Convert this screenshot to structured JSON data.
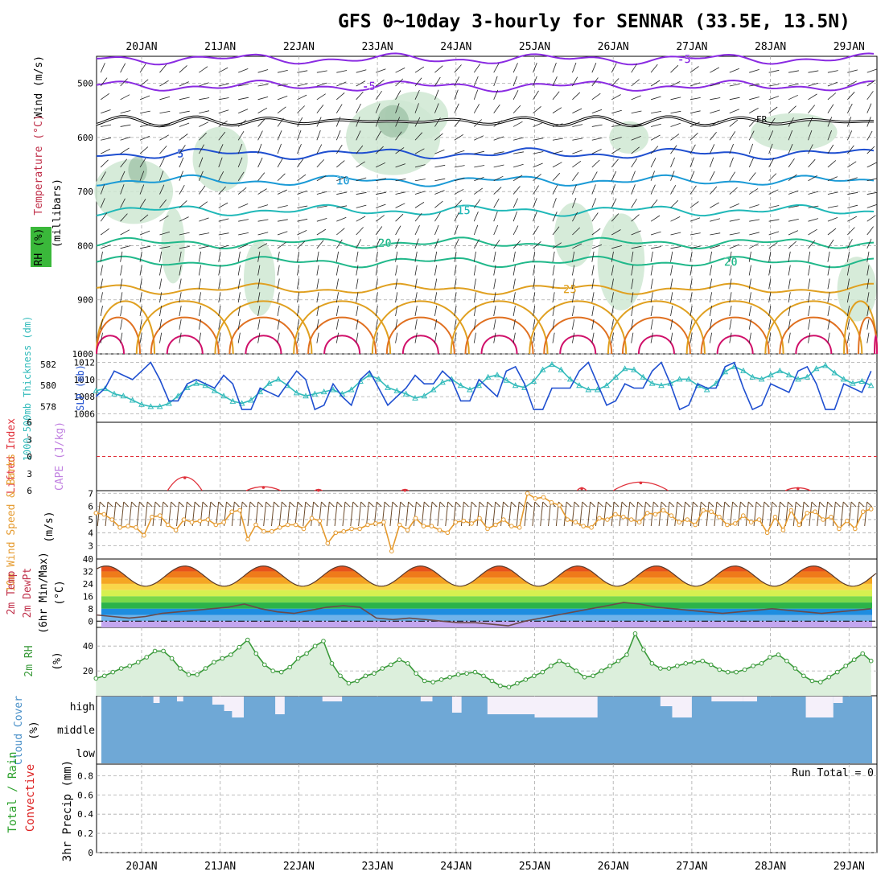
{
  "chart_data": {
    "type": "line",
    "title": "GFS 0~10day 3-hourly for SENNAR (33.5E, 13.5N)",
    "x_days": [
      "20JAN",
      "21JAN",
      "22JAN",
      "23JAN",
      "24JAN",
      "25JAN",
      "26JAN",
      "27JAN",
      "28JAN",
      "29JAN"
    ],
    "colors": {
      "grid": "#aaaaaa",
      "frame": "#000000",
      "rh_fill": "#cfe8d2",
      "rh_fill_dark": "#8fb89a",
      "slp": "#1f4fd0",
      "thickness": "#33bbbb",
      "li": "#e0303a",
      "cape": "#c080e0",
      "wind": "#e59a2e",
      "barb": "#6b4a2a",
      "temp": "#5a3a2a",
      "rh2m": "#3a9a3a",
      "cloud": "#6fa8d6",
      "cloud_gap": "#f5f0fa",
      "precip_total": "#2aa02a",
      "precip_conv": "#dd2222"
    },
    "panel_upper": {
      "ylabel_wind": "Wind (m/s)",
      "ylabel_temp": "Temperature (°C)",
      "ylabel_rh": "RH (%)",
      "ylabel_mb": "(millibars)",
      "y_ticks": [
        "500",
        "600",
        "700",
        "800",
        "900",
        "1000"
      ],
      "y_range_mb": [
        450,
        1000
      ],
      "freezing_label": "FR",
      "isotherms": [
        {
          "label": "-5",
          "mb": 505,
          "color": "#8a2be2"
        },
        {
          "label": "-5",
          "mb": 455,
          "color": "#8a2be2"
        },
        {
          "label": "5",
          "mb": 630,
          "color": "#1f4fd0"
        },
        {
          "label": "10",
          "mb": 680,
          "color": "#1a9ad6"
        },
        {
          "label": "15",
          "mb": 735,
          "color": "#20b8b8"
        },
        {
          "label": "20",
          "mb": 795,
          "color": "#20b88a"
        },
        {
          "label": "20",
          "mb": 830,
          "color": "#20b88a"
        },
        {
          "label": "25",
          "mb": 880,
          "color": "#e0a020"
        }
      ],
      "rh_contours": [
        "10",
        "30"
      ]
    },
    "panel_slp": {
      "ylabel_left": "1000-500mb Thickness (dm)",
      "ylabel_right": "SLP (mb)",
      "left_ticks": [
        "582",
        "580",
        "578"
      ],
      "right_ticks": [
        "1012",
        "1010",
        "1008",
        "1006"
      ],
      "slp_mb": [
        1008,
        1009,
        1011,
        1010.5,
        1010,
        1011,
        1012,
        1010,
        1007.5,
        1007.5,
        1009.5,
        1010,
        1009.5,
        1009,
        1010.5,
        1009.5,
        1006.5,
        1006.5,
        1009,
        1008.5,
        1008,
        1009.5,
        1011,
        1010,
        1006.5,
        1007,
        1009.5,
        1008,
        1007,
        1010,
        1011,
        1009,
        1007,
        1008,
        1009,
        1010.5,
        1009.5,
        1009.5,
        1011,
        1010,
        1007.5,
        1007.5,
        1010,
        1009,
        1008,
        1011,
        1011.5,
        1009.5,
        1006.5,
        1006.5,
        1009,
        1009,
        1009,
        1011,
        1012,
        1009.5,
        1007,
        1007.5,
        1009.5,
        1009,
        1009,
        1011,
        1012,
        1009.5,
        1006.5,
        1007,
        1009.5,
        1009,
        1009,
        1011.5,
        1012,
        1009,
        1006.5,
        1007,
        1009.5,
        1009,
        1008.5,
        1011,
        1011.5,
        1009.5,
        1006.5,
        1006.5,
        1009.5,
        1009,
        1008.5,
        1011
      ],
      "thickness_dm": [
        579.5,
        579.7,
        579.2,
        579.0,
        578.6,
        578.2,
        578.0,
        578.0,
        578.3,
        579.0,
        579.8,
        580.2,
        580.0,
        579.5,
        579.0,
        578.5,
        578.3,
        578.6,
        579.4,
        580.2,
        580.6,
        580.0,
        579.3,
        579.0,
        579.2,
        579.4,
        579.6,
        579.2,
        579.6,
        580.4,
        581.0,
        580.6,
        579.8,
        579.5,
        579.2,
        578.8,
        579.0,
        579.6,
        580.3,
        580.6,
        580.0,
        579.6,
        580.0,
        580.8,
        581.0,
        580.5,
        580.0,
        579.8,
        580.4,
        581.5,
        582.0,
        581.5,
        580.6,
        580.0,
        579.6,
        579.6,
        580.0,
        580.8,
        581.6,
        581.5,
        580.8,
        580.2,
        580.0,
        580.2,
        580.6,
        580.6,
        580.0,
        579.6,
        580.2,
        581.3,
        581.8,
        581.4,
        580.8,
        580.6,
        581.0,
        581.4,
        581.0,
        580.6,
        580.8,
        581.6,
        581.9,
        581.2,
        580.6,
        580.2,
        580.4,
        580.0
      ]
    },
    "panel_li": {
      "ylabel": "Lifted Index",
      "ylabel2": "CAPE (J/kg)",
      "y_ticks": [
        "-6",
        "-3",
        "0",
        "3",
        "6"
      ],
      "li_bumps": [
        {
          "day": 0.55,
          "width": 0.22,
          "peak": 3.6
        },
        {
          "day": 1.55,
          "width": 0.22,
          "peak": 5.3
        },
        {
          "day": 2.25,
          "width": 0.05,
          "peak": 5.8
        },
        {
          "day": 3.35,
          "width": 0.05,
          "peak": 5.8
        },
        {
          "day": 5.6,
          "width": 0.06,
          "peak": 5.5
        },
        {
          "day": 6.35,
          "width": 0.35,
          "peak": 4.5
        },
        {
          "day": 8.35,
          "width": 0.16,
          "peak": 5.5
        }
      ]
    },
    "panel_wind": {
      "ylabel": "10m Wind Speed & Barbs",
      "units": "(m/s)",
      "y_ticks": [
        "7",
        "6",
        "5",
        "4",
        "3"
      ],
      "y_range": [
        2,
        7
      ],
      "speed": [
        5.5,
        5.4,
        5.0,
        4.4,
        4.5,
        4.4,
        3.8,
        5.2,
        5.3,
        4.6,
        4.2,
        5.0,
        4.8,
        4.9,
        5.0,
        4.6,
        4.8,
        5.6,
        5.7,
        3.5,
        4.6,
        4.1,
        4.1,
        4.4,
        4.6,
        4.6,
        4.3,
        5.1,
        4.9,
        3.2,
        4.0,
        4.1,
        4.3,
        4.3,
        4.6,
        4.7,
        4.8,
        2.6,
        4.6,
        4.2,
        5.1,
        4.5,
        4.5,
        4.2,
        4.0,
        4.8,
        4.9,
        4.7,
        5.1,
        4.3,
        4.6,
        5.0,
        4.5,
        4.4,
        7.0,
        6.6,
        6.7,
        6.3,
        6.1,
        5.0,
        4.8,
        4.5,
        4.4,
        5.1,
        5.0,
        5.4,
        5.2,
        5.0,
        4.8,
        5.5,
        5.4,
        5.7,
        5.3,
        4.8,
        5.0,
        4.6,
        5.7,
        5.6,
        5.2,
        4.6,
        4.7,
        5.3,
        4.8,
        5.0,
        4.0,
        5.2,
        4.2,
        5.7,
        4.6,
        5.5,
        5.6,
        5.0,
        5.2,
        4.3,
        4.9,
        4.3,
        5.6,
        5.8
      ]
    },
    "panel_temp": {
      "ylabel": "2m Temp 2m DewPt (6hr Min/Max) (°C)",
      "ylabel_a": "2m Temp",
      "ylabel_b": "2m DewPt",
      "ylabel_c": "(6hr Min/Max)",
      "ylabel_d": "(°C)",
      "y_ticks": [
        "40",
        "32",
        "24",
        "16",
        "8",
        "0"
      ],
      "y_range": [
        -4,
        40
      ],
      "temp_min": 23,
      "temp_max": 36,
      "dewpt": [
        4,
        3,
        2,
        3,
        5,
        6,
        7,
        8,
        9,
        11,
        8,
        6,
        5,
        7,
        9,
        10,
        9,
        2,
        1,
        2,
        1,
        0,
        -1,
        -1,
        -2,
        -3,
        0,
        2,
        4,
        6,
        8,
        10,
        12,
        11,
        9,
        8,
        7,
        6,
        5,
        6,
        7,
        8,
        7,
        6,
        5,
        6,
        7,
        8
      ]
    },
    "panel_rh": {
      "ylabel": "2m RH",
      "units": "(%)",
      "y_ticks": [
        "40",
        "20"
      ],
      "y_range": [
        0,
        55
      ],
      "rh": [
        14,
        16,
        19,
        22,
        24,
        27,
        31,
        36,
        36,
        30,
        22,
        17,
        17,
        22,
        27,
        30,
        33,
        39,
        45,
        34,
        25,
        20,
        19,
        23,
        30,
        34,
        40,
        44,
        26,
        16,
        10,
        12,
        16,
        18,
        22,
        25,
        29,
        26,
        18,
        12,
        11,
        13,
        15,
        17,
        18,
        19,
        16,
        12,
        8,
        7,
        10,
        13,
        16,
        19,
        24,
        28,
        25,
        20,
        15,
        16,
        20,
        24,
        28,
        33,
        50,
        37,
        26,
        22,
        22,
        24,
        26,
        27,
        28,
        25,
        21,
        19,
        19,
        21,
        24,
        26,
        31,
        33,
        28,
        22,
        16,
        12,
        11,
        15,
        19,
        24,
        29,
        34,
        28
      ]
    },
    "panel_cloud": {
      "ylabel": "Cloud Cover",
      "units": "(%)",
      "levels": [
        "high",
        "middle",
        "low"
      ]
    },
    "panel_precip": {
      "ylabel_a": "Total / Rain",
      "ylabel_b": "Convective",
      "ylabel_c": "3hr Precip (mm)",
      "y_ticks": [
        "0.8",
        "0.6",
        "0.4",
        "0.2",
        "0"
      ],
      "run_total": "Run Total = 0"
    }
  }
}
